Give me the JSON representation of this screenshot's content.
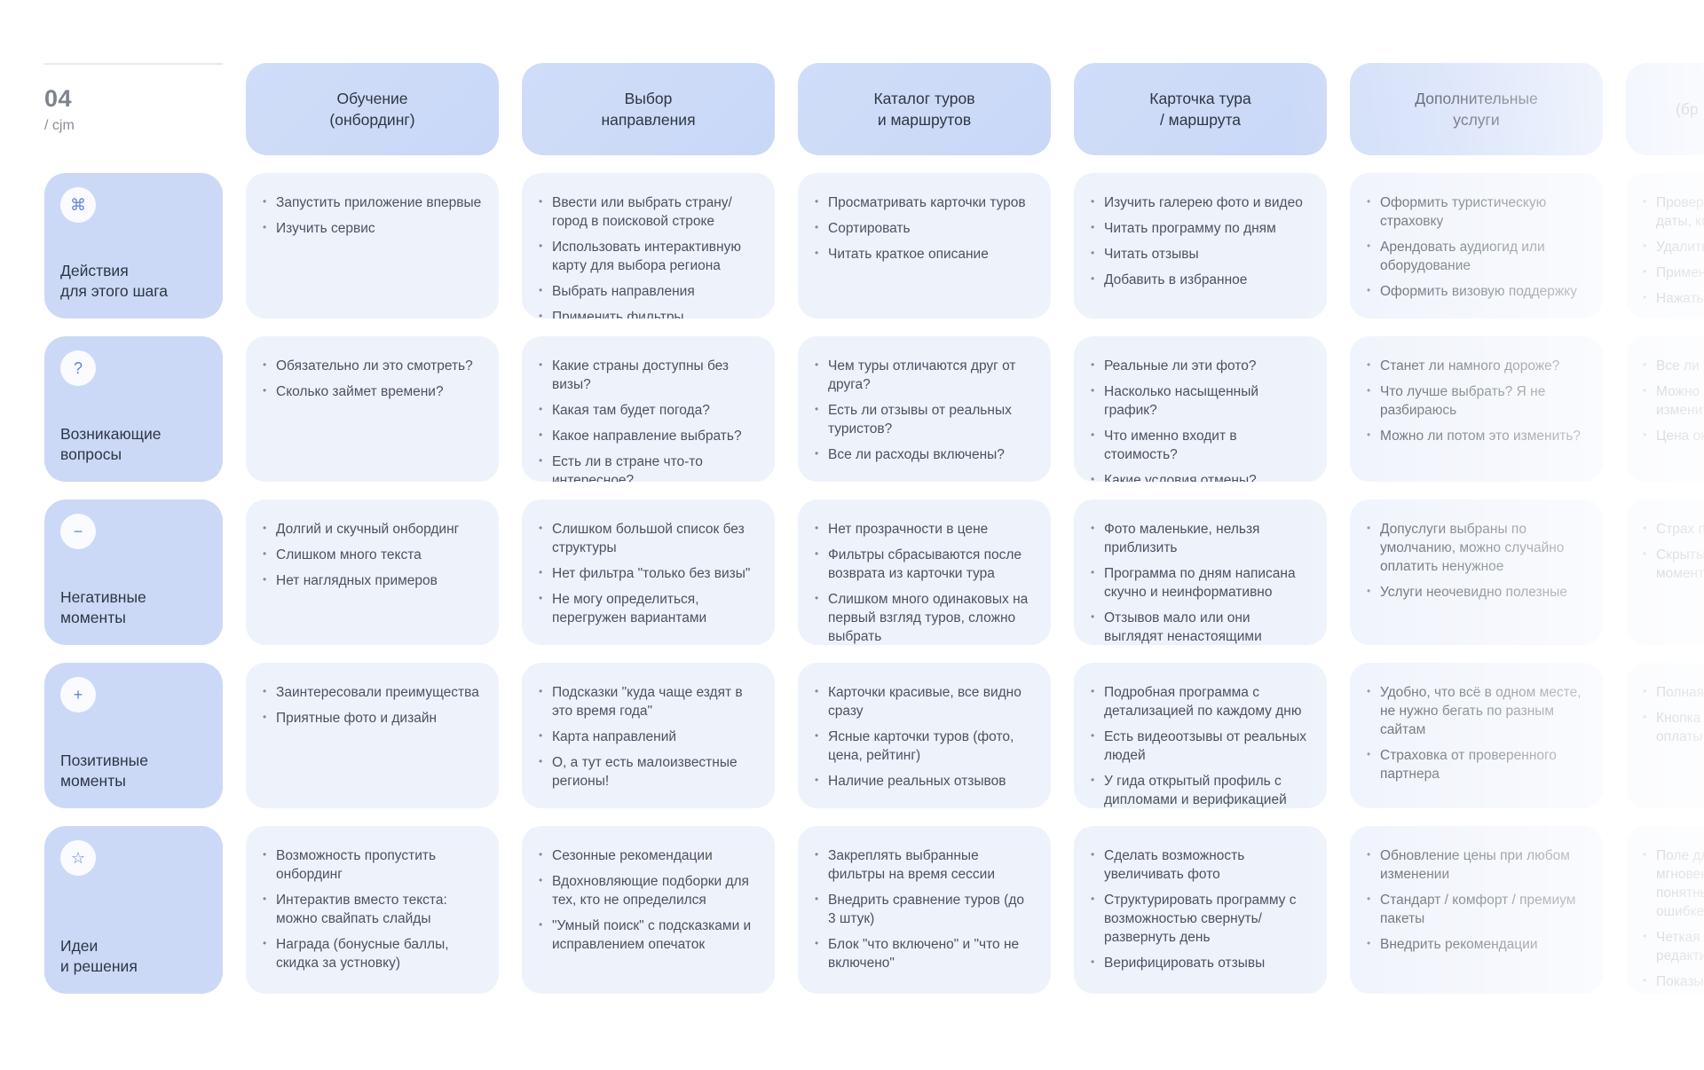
{
  "corner": {
    "number": "04",
    "caption": "/ cjm"
  },
  "icon_glyphs": {
    "command": "⌘",
    "question": "?",
    "minus": "−",
    "plus": "+",
    "star": "☆"
  },
  "rows": [
    {
      "id": "actions",
      "icon": "command",
      "label": "Действия\nдля этого шага"
    },
    {
      "id": "questions",
      "icon": "question",
      "label": "Возникающие\nвопросы"
    },
    {
      "id": "negatives",
      "icon": "minus",
      "label": "Негативные\nмоменты"
    },
    {
      "id": "positives",
      "icon": "plus",
      "label": "Позитивные\nмоменты"
    },
    {
      "id": "ideas",
      "icon": "star",
      "label": "Идеи\nи решения"
    }
  ],
  "columns": [
    {
      "title": "Обучение\n(онбординг)",
      "cells": [
        [
          "Запустить приложение впервые",
          "Изучить сервис"
        ],
        [
          "Обязательно ли это смотреть?",
          "Сколько займет времени?"
        ],
        [
          "Долгий и скучный онбординг",
          "Слишком много текста",
          "Нет наглядных примеров"
        ],
        [
          "Заинтересовали преимущества",
          "Приятные фото и дизайн"
        ],
        [
          "Возможность пропустить онбординг",
          "Интерактив вместо текста: можно свайпать слайды",
          "Награда (бонусные баллы, скидка за устновку)"
        ]
      ]
    },
    {
      "title": "Выбор\nнаправления",
      "cells": [
        [
          "Ввести или выбрать страну/город в поисковой строке",
          "Использовать интерактивную карту для выбора региона",
          "Выбрать направления",
          "Применить фильтры"
        ],
        [
          "Какие страны доступны без визы?",
          "Какая там будет погода?",
          "Какое направление выбрать?",
          "Есть ли в стране что-то интересное?"
        ],
        [
          "Слишком большой список без структуры",
          "Нет фильтра \"только без визы\"",
          "Не могу определиться, перегружен вариантами"
        ],
        [
          "Подсказки \"куда чаще ездят в это время года\"",
          "Карта направлений",
          "О, а тут есть малоизвестные регионы!"
        ],
        [
          "Сезонные рекомендации",
          "Вдохновляющие подборки для тех, кто не определился",
          "\"Умный поиск\" с подсказками и исправлением опечаток"
        ]
      ]
    },
    {
      "title": "Каталог туров\nи маршрутов",
      "cells": [
        [
          "Просматривать карточки туров",
          "Сортировать",
          "Читать краткое описание"
        ],
        [
          "Чем туры отличаются друг от друга?",
          "Есть ли отзывы от реальных туристов?",
          "Все ли расходы включены?"
        ],
        [
          "Нет прозрачности в цене",
          "Фильтры сбрасываются после возврата из карточки тура",
          "Слишком много одинаковых на первый взгляд туров, сложно выбрать"
        ],
        [
          "Карточки красивые, все видно сразу",
          "Ясные карточки туров (фото, цена, рейтинг)",
          "Наличие реальных отзывов"
        ],
        [
          "Закреплять выбранные фильтры на время сессии",
          "Внедрить сравнение туров (до 3 штук)",
          "Блок \"что включено\" и \"что не включено\""
        ]
      ]
    },
    {
      "title": "Карточка тура\n/ маршрута",
      "cells": [
        [
          "Изучить галерею фото и видео",
          "Читать программу по дням",
          "Читать отзывы",
          "Добавить в избранное"
        ],
        [
          "Реальные ли эти фото?",
          "Насколько насыщенный график?",
          "Что именно входит в стоимость?",
          "Какие условия отмены?"
        ],
        [
          "Фото маленькие, нельзя приблизить",
          "Программа по дням написана скучно и неинформативно",
          "Отзывов мало или они выглядят ненастоящими"
        ],
        [
          "Подробная программа с детализацией по каждому дню",
          "Есть видеоотзывы от реальных людей",
          "У гида открытый профиль с дипломами и верификацией"
        ],
        [
          "Сделать возможность увеличивать фото",
          "Структурировать программу с возможностью свернуть/развернуть день",
          "Верифицировать отзывы"
        ]
      ]
    },
    {
      "title": "Дополнительные\nуслуги",
      "cells": [
        [
          "Оформить туристическую страховку",
          "Арендовать аудиогид или оборудование",
          "Оформить визовую поддержку"
        ],
        [
          "Станет ли намного дороже?",
          "Что лучше выбрать? Я не разбираюсь",
          "Можно ли потом это изменить?"
        ],
        [
          "Допуслуги выбраны по умолчанию, можно случайно оплатить ненужное",
          "Услуги неочевидно полезные"
        ],
        [
          "Удобно, что всё в одном месте, не нужно бегать по разным сайтам",
          "Страховка от проверенного партнера"
        ],
        [
          "Обновление цены при любом изменении",
          "Стандарт / комфорт / премиум пакеты",
          "Внедрить рекомендации"
        ]
      ]
    },
    {
      "title": "(бр",
      "cells": [
        [
          "Проверить\nдаты, кол",
          "Удалить/д",
          "Примени",
          "Нажать \""
        ],
        [
          "Все ли я у",
          "Можно ли\nизменить",
          "Цена окон"
        ],
        [
          "Страх пер",
          "Скрытые\nмомент"
        ],
        [
          "Полная пр",
          "Кнопка \"З\nоплаты на"
        ],
        [
          "Поле для\nмгновенн\nпонятным\nошибке",
          "Четкая кн\nредактир",
          "Показыва\nкрупно"
        ]
      ]
    }
  ]
}
